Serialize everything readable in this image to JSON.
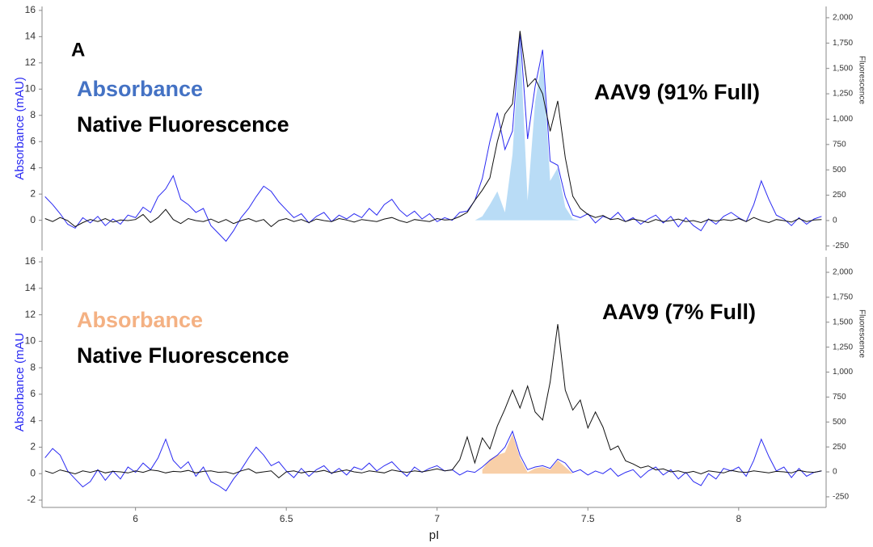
{
  "chart_data": [
    {
      "type": "line",
      "panel_label": "A",
      "annotation": "AAV9 (91% Full)",
      "ylabel": "Absorbance (mAU)",
      "y2label": "Fluorescence",
      "xlim": [
        5.69,
        8.29
      ],
      "ylim": [
        -2.3,
        16.3
      ],
      "yticks": [
        0,
        2,
        4,
        6,
        8,
        10,
        12,
        14,
        16
      ],
      "y2lim": [
        -295,
        2111
      ],
      "y2ticks": [
        -250,
        0,
        250,
        500,
        750,
        {
          "value": 1000,
          "label": "1,000"
        },
        {
          "value": 1250,
          "label": "1,250"
        },
        {
          "value": 1500,
          "label": "1,500"
        },
        {
          "value": 1750,
          "label": "1,750"
        },
        {
          "value": 2000,
          "label": "2,000"
        }
      ],
      "x": [
        5.7,
        5.725,
        5.75,
        5.775,
        5.8,
        5.825,
        5.85,
        5.875,
        5.9,
        5.925,
        5.95,
        5.975,
        6.0,
        6.025,
        6.05,
        6.075,
        6.1,
        6.125,
        6.15,
        6.175,
        6.2,
        6.225,
        6.25,
        6.275,
        6.3,
        6.325,
        6.35,
        6.375,
        6.4,
        6.425,
        6.45,
        6.475,
        6.5,
        6.525,
        6.55,
        6.575,
        6.6,
        6.625,
        6.65,
        6.675,
        6.7,
        6.725,
        6.75,
        6.775,
        6.8,
        6.825,
        6.85,
        6.875,
        6.9,
        6.925,
        6.95,
        6.975,
        7.0,
        7.025,
        7.05,
        7.075,
        7.1,
        7.125,
        7.15,
        7.175,
        7.2,
        7.225,
        7.25,
        7.275,
        7.3,
        7.325,
        7.35,
        7.375,
        7.4,
        7.425,
        7.45,
        7.475,
        7.5,
        7.525,
        7.55,
        7.575,
        7.6,
        7.625,
        7.65,
        7.675,
        7.7,
        7.725,
        7.75,
        7.775,
        7.8,
        7.825,
        7.85,
        7.875,
        7.9,
        7.925,
        7.95,
        7.975,
        8.0,
        8.025,
        8.05,
        8.075,
        8.1,
        8.125,
        8.15,
        8.175,
        8.2,
        8.225,
        8.25,
        8.275
      ],
      "series": [
        {
          "color": "#b9dcf6",
          "fill": true,
          "values": [
            null,
            null,
            null,
            null,
            null,
            null,
            null,
            null,
            null,
            null,
            null,
            null,
            null,
            null,
            null,
            null,
            null,
            null,
            null,
            null,
            null,
            null,
            null,
            null,
            null,
            null,
            null,
            null,
            null,
            null,
            null,
            null,
            null,
            null,
            null,
            null,
            null,
            null,
            null,
            null,
            null,
            null,
            null,
            null,
            null,
            null,
            null,
            null,
            null,
            null,
            null,
            null,
            null,
            null,
            null,
            null,
            null,
            0,
            0.3,
            1.2,
            2.2,
            0.6,
            5,
            14,
            1.5,
            9,
            12.5,
            3,
            4,
            1,
            0.1,
            0,
            null,
            null,
            null,
            null,
            null,
            null,
            null,
            null,
            null,
            null,
            null,
            null,
            null,
            null,
            null,
            null,
            null,
            null,
            null,
            null,
            null,
            null,
            null,
            null,
            null,
            null,
            null,
            null,
            null,
            null,
            null,
            null
          ]
        },
        {
          "name": "Absorbance",
          "color": "#2a2af2",
          "label_color": "#4472c4",
          "values": [
            1.8,
            1.2,
            0.5,
            -0.3,
            -0.6,
            0.2,
            -0.2,
            0.3,
            -0.4,
            0.1,
            -0.3,
            0.4,
            0.2,
            1.0,
            0.6,
            1.8,
            2.4,
            3.4,
            1.6,
            1.2,
            0.6,
            0.9,
            -0.4,
            -1.0,
            -1.6,
            -0.8,
            0.2,
            0.9,
            1.8,
            2.6,
            2.2,
            1.4,
            0.8,
            0.2,
            0.5,
            -0.2,
            0.3,
            0.6,
            -0.1,
            0.4,
            0.1,
            0.5,
            0.2,
            0.9,
            0.4,
            1.2,
            1.6,
            0.8,
            0.3,
            0.7,
            0.1,
            0.5,
            -0.1,
            0.2,
            0.0,
            0.6,
            0.7,
            1.5,
            3.2,
            6.0,
            8.2,
            5.4,
            6.8,
            14.3,
            6.2,
            10.2,
            13.0,
            4.5,
            4.2,
            1.8,
            0.4,
            0.2,
            0.5,
            -0.2,
            0.3,
            0.1,
            0.6,
            -0.1,
            0.2,
            -0.3,
            0.1,
            0.4,
            -0.2,
            0.3,
            -0.5,
            0.2,
            -0.4,
            -0.8,
            0.1,
            -0.3,
            0.3,
            0.6,
            0.2,
            -0.1,
            1.2,
            3.0,
            1.6,
            0.4,
            0.1,
            -0.4,
            0.2,
            -0.3,
            0.1,
            0.3
          ]
        },
        {
          "name": "Native Fluorescence",
          "color": "#111111",
          "label_color": "#000000",
          "axis": "y2",
          "values": [
            20,
            -10,
            30,
            0,
            -60,
            -20,
            10,
            -10,
            20,
            -15,
            5,
            0,
            10,
            60,
            -20,
            30,
            110,
            10,
            -30,
            20,
            0,
            -10,
            15,
            -20,
            10,
            -30,
            0,
            20,
            -10,
            10,
            -60,
            0,
            20,
            -10,
            10,
            -20,
            15,
            0,
            -10,
            20,
            5,
            -15,
            10,
            0,
            -10,
            15,
            30,
            0,
            -20,
            10,
            0,
            -10,
            20,
            5,
            10,
            40,
            80,
            200,
            300,
            420,
            780,
            1050,
            1150,
            1870,
            1320,
            1400,
            1250,
            880,
            1180,
            620,
            240,
            120,
            60,
            30,
            50,
            10,
            20,
            -10,
            15,
            0,
            -20,
            10,
            -10,
            0,
            15,
            -10,
            0,
            -20,
            10,
            -5,
            10,
            0,
            20,
            -10,
            30,
            0,
            -20,
            10,
            0,
            -15,
            20,
            -10,
            5,
            10
          ]
        }
      ]
    },
    {
      "type": "line",
      "annotation": "AAV9 (7% Full)",
      "ylabel": "Absorbance (mAU",
      "y2label": "Fluorescence",
      "xlabel": "pI",
      "xlim": [
        5.69,
        8.29
      ],
      "xticks": [
        6,
        6.5,
        7,
        7.5,
        8
      ],
      "ylim": [
        -2.55,
        16.37
      ],
      "yticks": [
        -2,
        0,
        2,
        4,
        6,
        8,
        10,
        12,
        14,
        16
      ],
      "y2lim": [
        -356,
        2154
      ],
      "y2ticks": [
        -250,
        0,
        250,
        500,
        750,
        {
          "value": 1000,
          "label": "1,000"
        },
        {
          "value": 1250,
          "label": "1,250"
        },
        {
          "value": 1500,
          "label": "1,500"
        },
        {
          "value": 1750,
          "label": "1,750"
        },
        {
          "value": 2000,
          "label": "2,000"
        }
      ],
      "x": [
        5.7,
        5.725,
        5.75,
        5.775,
        5.8,
        5.825,
        5.85,
        5.875,
        5.9,
        5.925,
        5.95,
        5.975,
        6.0,
        6.025,
        6.05,
        6.075,
        6.1,
        6.125,
        6.15,
        6.175,
        6.2,
        6.225,
        6.25,
        6.275,
        6.3,
        6.325,
        6.35,
        6.375,
        6.4,
        6.425,
        6.45,
        6.475,
        6.5,
        6.525,
        6.55,
        6.575,
        6.6,
        6.625,
        6.65,
        6.675,
        6.7,
        6.725,
        6.75,
        6.775,
        6.8,
        6.825,
        6.85,
        6.875,
        6.9,
        6.925,
        6.95,
        6.975,
        7.0,
        7.025,
        7.05,
        7.075,
        7.1,
        7.125,
        7.15,
        7.175,
        7.2,
        7.225,
        7.25,
        7.275,
        7.3,
        7.325,
        7.35,
        7.375,
        7.4,
        7.425,
        7.45,
        7.475,
        7.5,
        7.525,
        7.55,
        7.575,
        7.6,
        7.625,
        7.65,
        7.675,
        7.7,
        7.725,
        7.75,
        7.775,
        7.8,
        7.825,
        7.85,
        7.875,
        7.9,
        7.925,
        7.95,
        7.975,
        8.0,
        8.025,
        8.05,
        8.075,
        8.1,
        8.125,
        8.15,
        8.175,
        8.2,
        8.225,
        8.25,
        8.275
      ],
      "series": [
        {
          "color": "#f8cfa8",
          "fill": true,
          "values": [
            null,
            null,
            null,
            null,
            null,
            null,
            null,
            null,
            null,
            null,
            null,
            null,
            null,
            null,
            null,
            null,
            null,
            null,
            null,
            null,
            null,
            null,
            null,
            null,
            null,
            null,
            null,
            null,
            null,
            null,
            null,
            null,
            null,
            null,
            null,
            null,
            null,
            null,
            null,
            null,
            null,
            null,
            null,
            null,
            null,
            null,
            null,
            null,
            null,
            null,
            null,
            null,
            null,
            null,
            null,
            null,
            null,
            null,
            0.3,
            1.1,
            1.4,
            1.6,
            3.0,
            1.2,
            0.1,
            0.4,
            0.5,
            0.3,
            1.0,
            0.5,
            0,
            null,
            null,
            null,
            null,
            null,
            null,
            null,
            null,
            null,
            null,
            null,
            null,
            null,
            null,
            null,
            null,
            null,
            null,
            null,
            null,
            null,
            null,
            null,
            null,
            null,
            null,
            null,
            null,
            null,
            null,
            null,
            null,
            null
          ]
        },
        {
          "name": "Absorbance",
          "color": "#2a2af2",
          "label_color": "#f4b183",
          "values": [
            1.2,
            1.9,
            1.4,
            0.2,
            -0.4,
            -1.0,
            -0.6,
            0.3,
            -0.5,
            0.2,
            -0.4,
            0.5,
            0.1,
            0.8,
            0.3,
            1.2,
            2.6,
            1.0,
            0.4,
            0.9,
            -0.2,
            0.5,
            -0.6,
            -0.9,
            -1.3,
            -0.4,
            0.3,
            1.2,
            2.0,
            1.4,
            0.6,
            0.9,
            0.2,
            -0.3,
            0.4,
            -0.2,
            0.3,
            0.6,
            0.0,
            0.4,
            -0.1,
            0.5,
            0.3,
            0.8,
            0.2,
            0.6,
            0.9,
            0.3,
            -0.2,
            0.5,
            0.1,
            0.4,
            0.6,
            0.2,
            0.3,
            -0.1,
            0.2,
            0.1,
            0.5,
            1.0,
            1.4,
            2.0,
            3.2,
            1.4,
            0.3,
            0.5,
            0.6,
            0.4,
            1.1,
            0.8,
            0.1,
            0.3,
            -0.1,
            0.2,
            0.0,
            0.4,
            -0.2,
            0.1,
            0.3,
            -0.3,
            0.2,
            0.5,
            -0.1,
            0.3,
            -0.4,
            0.1,
            -0.6,
            -0.9,
            0.0,
            -0.4,
            0.4,
            0.2,
            0.5,
            -0.2,
            1.0,
            2.6,
            1.3,
            0.2,
            0.5,
            -0.3,
            0.4,
            -0.2,
            0.1,
            0.2
          ]
        },
        {
          "name": "Native Fluorescence",
          "color": "#111111",
          "label_color": "#000000",
          "axis": "y2",
          "values": [
            10,
            -15,
            20,
            0,
            -20,
            10,
            -5,
            15,
            -10,
            5,
            0,
            -10,
            10,
            -5,
            20,
            10,
            -10,
            5,
            0,
            15,
            -10,
            5,
            10,
            -5,
            0,
            -20,
            10,
            30,
            -10,
            0,
            10,
            -60,
            0,
            10,
            -10,
            5,
            0,
            15,
            -10,
            5,
            20,
            0,
            -10,
            10,
            0,
            -10,
            20,
            5,
            -5,
            10,
            0,
            15,
            30,
            10,
            20,
            120,
            350,
            90,
            340,
            230,
            460,
            630,
            820,
            640,
            860,
            600,
            520,
            900,
            1480,
            820,
            620,
            720,
            440,
            600,
            450,
            220,
            260,
            110,
            80,
            40,
            60,
            20,
            30,
            0,
            10,
            -10,
            5,
            -20,
            10,
            0,
            -10,
            15,
            0,
            -5,
            10,
            0,
            -10,
            5,
            0,
            -10,
            15,
            0,
            -5,
            10
          ]
        }
      ]
    }
  ]
}
